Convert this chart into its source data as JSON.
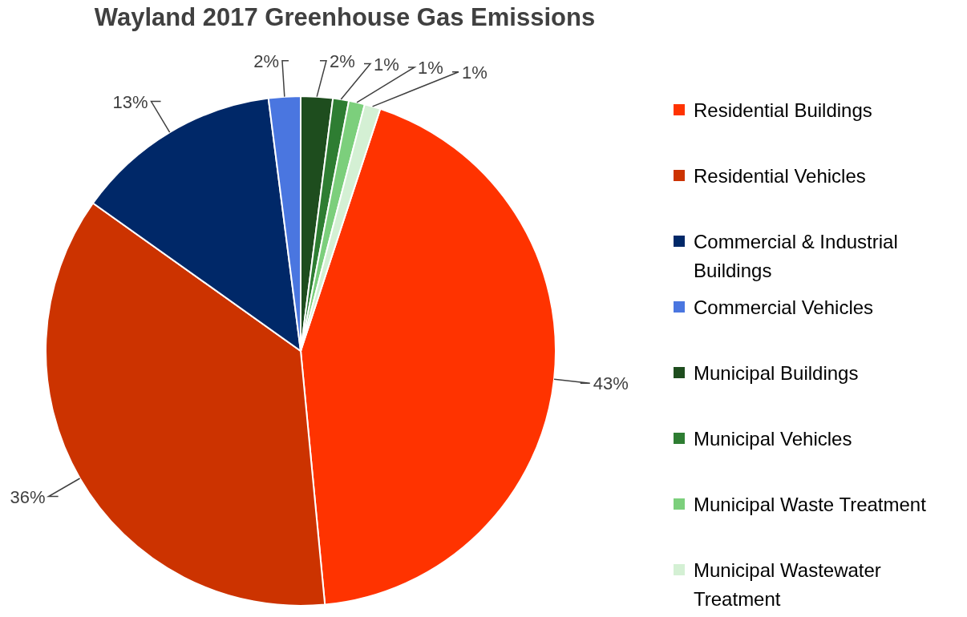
{
  "chart_data": {
    "type": "pie",
    "title": "Wayland 2017 Greenhouse Gas Emissions",
    "categories": [
      "Residential Buildings",
      "Residential Vehicles",
      "Commercial & Industrial Buildings",
      "Commercial Vehicles",
      "Municipal Buildings",
      "Municipal Vehicles",
      "Municipal Waste Treatment",
      "Municipal Wastewater Treatment"
    ],
    "values": [
      43,
      36,
      13,
      2,
      2,
      1,
      1,
      1
    ],
    "value_labels": [
      "43%",
      "36%",
      "13%",
      "2%",
      "2%",
      "1%",
      "1%",
      "1%"
    ],
    "colors": [
      "#ff3300",
      "#cc3300",
      "#002868",
      "#4a76e0",
      "#1e4d1e",
      "#2e7d32",
      "#7ccf7c",
      "#d4f0d4"
    ],
    "legend": "right"
  }
}
